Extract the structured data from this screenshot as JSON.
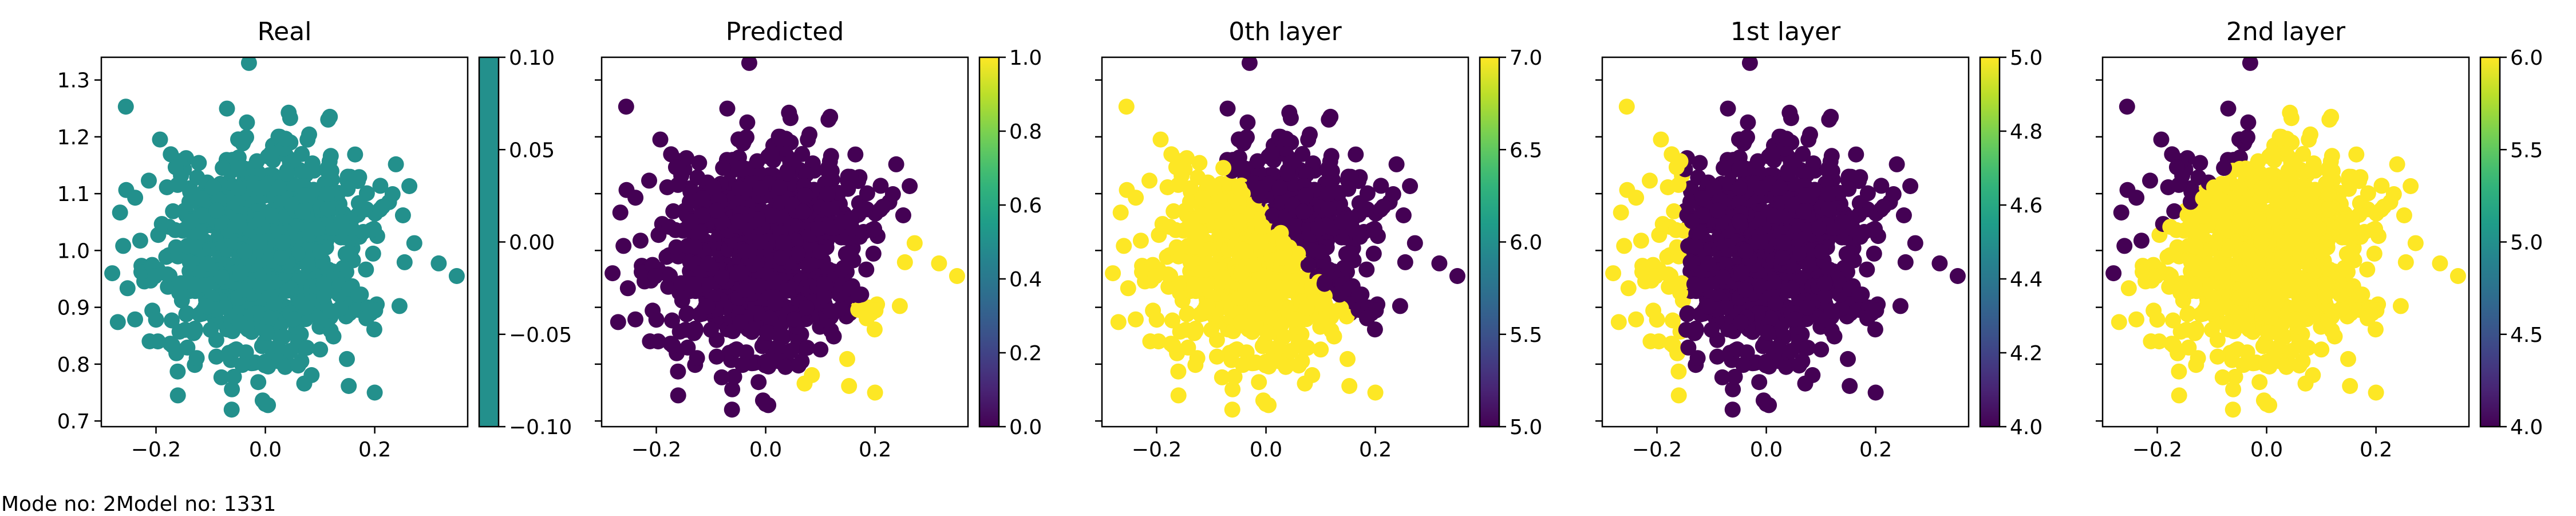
{
  "footer": "Mode no: 2Model no: 1331",
  "colors": {
    "viridis_low": "#440154",
    "viridis_mid": "#21918c",
    "viridis_high": "#fde725",
    "axis": "#000000"
  },
  "shared_axes": {
    "x_ticks": [
      -0.2,
      0.0,
      0.2
    ],
    "x_tick_labels": [
      "−0.2",
      "0.0",
      "0.2"
    ],
    "xlim": [
      -0.3,
      0.37
    ],
    "y_ticks": [
      0.7,
      0.8,
      0.9,
      1.0,
      1.1,
      1.2,
      1.3
    ],
    "y_tick_labels": [
      "0.7",
      "0.8",
      "0.9",
      "1.0",
      "1.1",
      "1.2",
      "1.3"
    ],
    "ylim": [
      0.69,
      1.34
    ]
  },
  "chart_data": [
    {
      "type": "scatter",
      "title": "Real",
      "colorbar": {
        "range": [
          -0.1,
          0.1
        ],
        "ticks": [
          -0.1,
          -0.05,
          0.0,
          0.05,
          0.1
        ],
        "tick_labels": [
          "−0.10",
          "−0.05",
          "0.00",
          "0.05",
          "0.10"
        ]
      },
      "color_rule": {
        "kind": "constant",
        "value": 0.0
      },
      "show_y_tick_labels": true
    },
    {
      "type": "scatter",
      "title": "Predicted",
      "colorbar": {
        "range": [
          0.0,
          1.0
        ],
        "ticks": [
          0.0,
          0.2,
          0.4,
          0.6,
          0.8,
          1.0
        ],
        "tick_labels": [
          "0.0",
          "0.2",
          "0.4",
          "0.6",
          "0.8",
          "1.0"
        ]
      },
      "color_rule": {
        "kind": "line",
        "x0": 0.02,
        "y0": 0.72,
        "x1": 0.3,
        "y1": 1.06,
        "above": 0.0,
        "below": 1.0
      },
      "show_y_tick_labels": false
    },
    {
      "type": "scatter",
      "title": "0th layer",
      "colorbar": {
        "range": [
          5.0,
          7.0
        ],
        "ticks": [
          5.0,
          5.5,
          6.0,
          6.5,
          7.0
        ],
        "tick_labels": [
          "5.0",
          "5.5",
          "6.0",
          "6.5",
          "7.0"
        ]
      },
      "color_rule": {
        "kind": "line",
        "x0": -0.09,
        "y0": 1.17,
        "x1": 0.19,
        "y1": 0.84,
        "above": 5.0,
        "below": 7.0
      },
      "show_y_tick_labels": false
    },
    {
      "type": "scatter",
      "title": "1st layer",
      "colorbar": {
        "range": [
          4.0,
          5.0
        ],
        "ticks": [
          4.0,
          4.2,
          4.4,
          4.6,
          4.8,
          5.0
        ],
        "tick_labels": [
          "4.0",
          "4.2",
          "4.4",
          "4.6",
          "4.8",
          "5.0"
        ]
      },
      "color_rule": {
        "kind": "vertical",
        "x": -0.15,
        "left": 5.0,
        "right": 4.0
      },
      "show_y_tick_labels": false
    },
    {
      "type": "scatter",
      "title": "2nd layer",
      "colorbar": {
        "range": [
          4.0,
          6.0
        ],
        "ticks": [
          4.0,
          4.5,
          5.0,
          5.5,
          6.0
        ],
        "tick_labels": [
          "4.0",
          "4.5",
          "5.0",
          "5.5",
          "6.0"
        ]
      },
      "color_rule": {
        "kind": "line",
        "x0": -0.2,
        "y0": 1.03,
        "x1": 0.05,
        "y1": 1.25,
        "above": 4.0,
        "below": 6.0
      },
      "show_y_tick_labels": false
    }
  ]
}
